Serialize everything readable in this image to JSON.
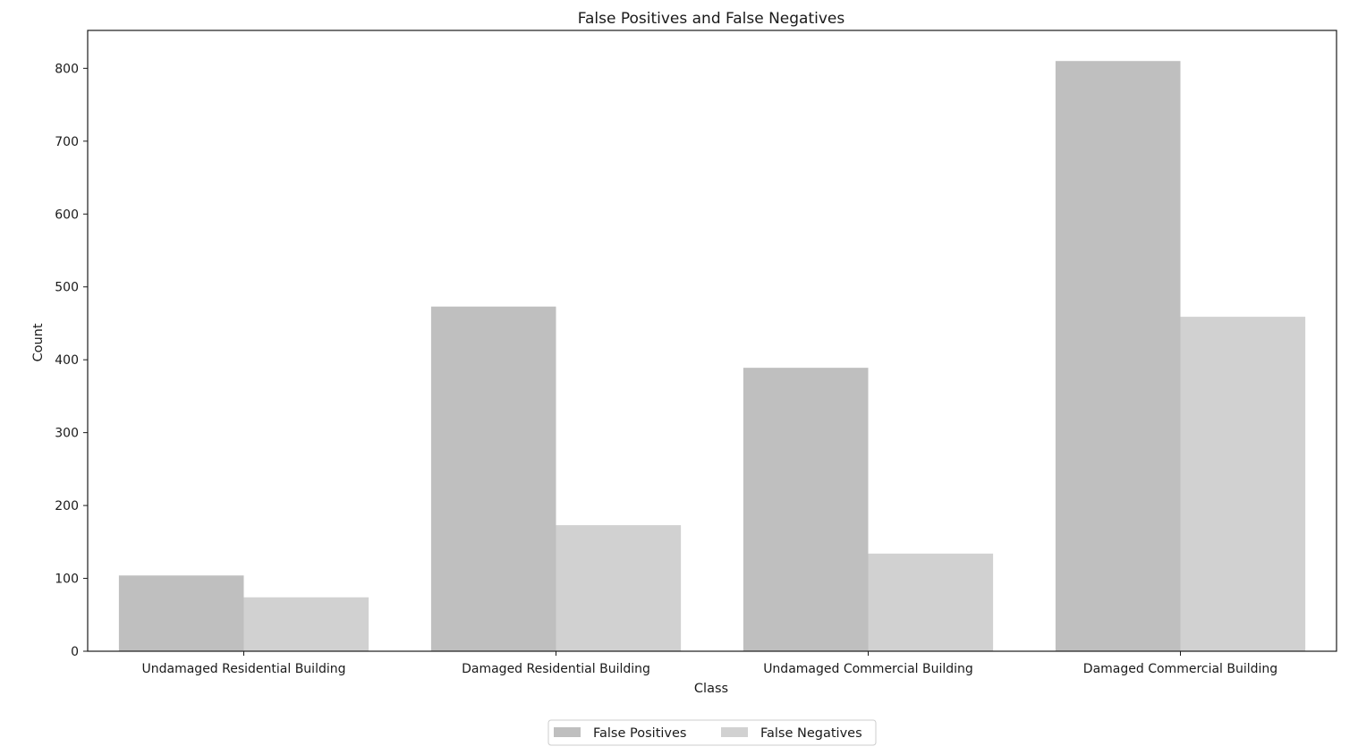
{
  "chart_data": {
    "type": "bar",
    "title": "False Positives and False Negatives",
    "xlabel": "Class",
    "ylabel": "Count",
    "categories": [
      "Undamaged Residential Building",
      "Damaged Residential Building",
      "Undamaged Commercial Building",
      "Damaged Commercial Building"
    ],
    "series": [
      {
        "name": "False Positives",
        "values": [
          104,
          473,
          389,
          810
        ],
        "color": "#bfbfbf"
      },
      {
        "name": "False Negatives",
        "values": [
          74,
          173,
          134,
          459
        ],
        "color": "#d1d1d1"
      }
    ],
    "ylim": [
      0,
      852
    ],
    "yticks": [
      0,
      100,
      200,
      300,
      400,
      500,
      600,
      700,
      800
    ],
    "grid": false,
    "legend": "bottom-center"
  }
}
